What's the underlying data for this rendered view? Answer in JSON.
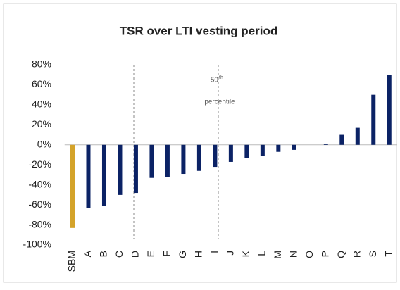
{
  "chart_data": {
    "type": "bar",
    "title": "TSR over LTI vesting period",
    "categories": [
      "SBM",
      "A",
      "B",
      "C",
      "D",
      "E",
      "F",
      "G",
      "H",
      "I",
      "J",
      "K",
      "L",
      "M",
      "N",
      "O",
      "P",
      "Q",
      "R",
      "S",
      "T"
    ],
    "values": [
      -83,
      -63,
      -61,
      -50,
      -48,
      -33,
      -32,
      -29,
      -26,
      -22,
      -17,
      -13,
      -11,
      -7,
      -5,
      0,
      1,
      10,
      17,
      50,
      70
    ],
    "colors": [
      "#d4a32a",
      "#0b2265",
      "#0b2265",
      "#0b2265",
      "#0b2265",
      "#0b2265",
      "#0b2265",
      "#0b2265",
      "#0b2265",
      "#0b2265",
      "#0b2265",
      "#0b2265",
      "#0b2265",
      "#0b2265",
      "#0b2265",
      "#0b2265",
      "#0b2265",
      "#0b2265",
      "#0b2265",
      "#0b2265",
      "#0b2265"
    ],
    "ylim": [
      -100,
      80
    ],
    "yticks": [
      {
        "value": -100,
        "label": "-100%"
      },
      {
        "value": -80,
        "label": "-80%"
      },
      {
        "value": -60,
        "label": "-60%"
      },
      {
        "value": -40,
        "label": "-40%"
      },
      {
        "value": -20,
        "label": "-20%"
      },
      {
        "value": 0,
        "label": "0%"
      },
      {
        "value": 20,
        "label": "20%"
      },
      {
        "value": 40,
        "label": "40%"
      },
      {
        "value": 60,
        "label": "60%"
      },
      {
        "value": 80,
        "label": "80%"
      }
    ],
    "grid": false,
    "annotations": [
      "50",
      "th",
      "percentile"
    ]
  }
}
